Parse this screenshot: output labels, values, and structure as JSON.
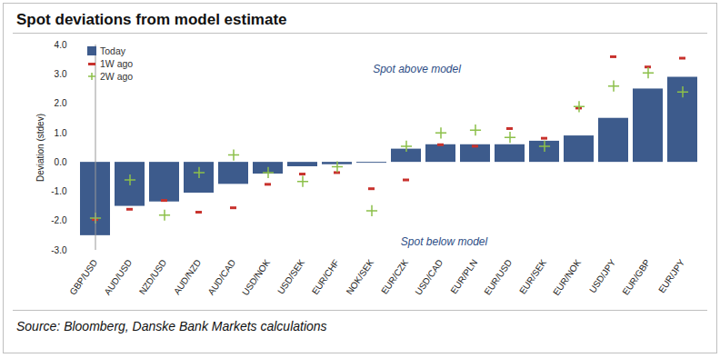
{
  "chart_data": {
    "type": "bar",
    "title": "Spot deviations from model estimate",
    "y_label": "Deviation (stdev)",
    "source": "Source: Bloomberg, Danske Bank Markets calculations",
    "annotations": [
      "Spot above model",
      "Spot below model"
    ],
    "categories": [
      "GBP/USD",
      "AUD/USD",
      "NZD/USD",
      "AUD/NZD",
      "AUD/CAD",
      "USD/NOK",
      "USD/SEK",
      "EUR/CHF",
      "NOK/SEK",
      "EUR/CZK",
      "USD/CAD",
      "EUR/PLN",
      "EUR/USD",
      "EUR/SEK",
      "EUR/NOK",
      "USD/JPY",
      "EUR/GBP",
      "EUR/JPY"
    ],
    "series": [
      {
        "name": "Today",
        "type": "bar",
        "color": "#3d5b8c",
        "values": [
          -2.5,
          -1.5,
          -1.35,
          -1.05,
          -0.75,
          -0.4,
          -0.15,
          -0.08,
          -0.03,
          0.45,
          0.6,
          0.6,
          0.6,
          0.72,
          0.9,
          1.5,
          2.5,
          2.9
        ]
      },
      {
        "name": "1W ago",
        "type": "scatter",
        "marker": "dash",
        "color": "#c8322d",
        "values": [
          -1.95,
          -1.6,
          -1.3,
          -1.7,
          -1.55,
          -0.75,
          -0.4,
          -0.35,
          -0.9,
          -0.6,
          0.6,
          0.55,
          1.15,
          0.82,
          1.85,
          3.6,
          3.25,
          3.55
        ]
      },
      {
        "name": "2W ago",
        "type": "scatter",
        "marker": "plus",
        "color": "#8cc04a",
        "values": [
          -1.9,
          -0.6,
          -1.8,
          -0.35,
          0.25,
          -0.35,
          -0.65,
          -0.15,
          -1.65,
          0.55,
          1.0,
          1.1,
          0.85,
          0.55,
          1.9,
          2.6,
          3.05,
          2.4
        ]
      }
    ],
    "ylim": [
      -3,
      4
    ],
    "yticks": [
      {
        "value": -3,
        "label": "-3.0"
      },
      {
        "value": -2,
        "label": "-2.0"
      },
      {
        "value": -1,
        "label": "-1.0"
      },
      {
        "value": 0,
        "label": "0.0"
      },
      {
        "value": 1,
        "label": "1.0"
      },
      {
        "value": 2,
        "label": "2.0"
      },
      {
        "value": 3,
        "label": "3.0"
      },
      {
        "value": 4,
        "label": "4.0"
      }
    ],
    "grid": false,
    "legend": "top-left"
  }
}
